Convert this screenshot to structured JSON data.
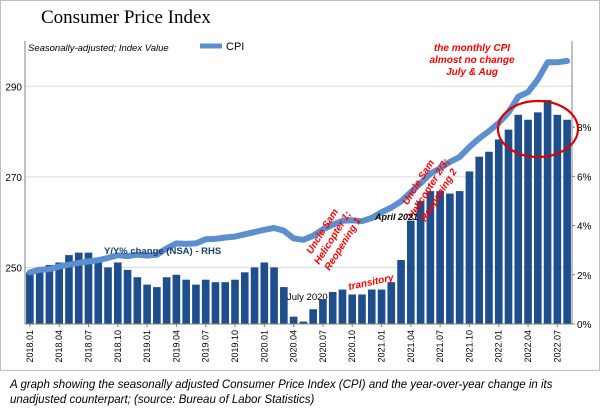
{
  "caption": "A graph showing the seasonally adjusted Consumer Price Index (CPI) and the year-over-year change in its unadjusted counterpart; (source: Bureau of Labor Statistics)",
  "chart_data": {
    "type": "bar+line",
    "title": "Consumer Price Index",
    "subtitle": "Seasonally-adjusted; Index Value",
    "legend": [
      {
        "name": "CPI",
        "color": "#5b8fd0"
      }
    ],
    "legend_position": "top",
    "bar_label": "Y/Y% change (NSA) - RHS",
    "x_tick_labels": [
      "2018.01",
      "2018.04",
      "2018.07",
      "2018.10",
      "2019.01",
      "2019.04",
      "2019.07",
      "2019.10",
      "2020.01",
      "2020.04",
      "2020.07",
      "2020.10",
      "2021.01",
      "2021.04",
      "2021.07",
      "2021.10",
      "2022.01",
      "2022.04",
      "2022.07"
    ],
    "x_tick_every": 3,
    "y_left": {
      "ticks": [
        250,
        270,
        290
      ],
      "range": [
        237.5,
        300
      ],
      "grid": true
    },
    "y_right": {
      "ticks": [
        "0%",
        "2%",
        "4%",
        "6%",
        "8%"
      ],
      "values": [
        0,
        2,
        4,
        6,
        8
      ],
      "range": [
        0,
        11.5
      ]
    },
    "series": [
      {
        "name": "CPI",
        "axis": "left",
        "kind": "line",
        "color": "#5b8fd0",
        "values": [
          248.9,
          249.5,
          249.6,
          250.2,
          250.6,
          251.0,
          251.3,
          251.6,
          252.1,
          252.7,
          252.5,
          252.8,
          252.6,
          252.8,
          254.2,
          255.3,
          255.2,
          255.3,
          256.2,
          256.3,
          256.6,
          256.8,
          257.3,
          257.8,
          258.3,
          258.7,
          258.1,
          256.4,
          256.1,
          257.0,
          258.4,
          259.4,
          260.3,
          260.4,
          260.2,
          260.9,
          262.2,
          263.2,
          264.6,
          266.6,
          268.6,
          270.7,
          271.9,
          273.3,
          274.4,
          276.6,
          278.5,
          280.1,
          281.9,
          284.2,
          287.7,
          288.7,
          291.5,
          295.3,
          295.3,
          295.6
        ]
      },
      {
        "name": "Y/Y% change (NSA)",
        "axis": "right",
        "kind": "bar",
        "color": "#1f4e8c",
        "values": [
          2.1,
          2.2,
          2.4,
          2.5,
          2.8,
          2.9,
          2.9,
          2.7,
          2.3,
          2.5,
          2.2,
          1.9,
          1.6,
          1.5,
          1.9,
          2.0,
          1.8,
          1.6,
          1.8,
          1.7,
          1.7,
          1.8,
          2.1,
          2.3,
          2.5,
          2.3,
          1.5,
          0.3,
          0.1,
          0.6,
          1.0,
          1.3,
          1.4,
          1.2,
          1.2,
          1.4,
          1.4,
          1.7,
          2.6,
          4.2,
          5.0,
          5.4,
          5.4,
          5.3,
          5.4,
          6.2,
          6.8,
          7.0,
          7.5,
          7.9,
          8.5,
          8.3,
          8.6,
          9.1,
          8.5,
          8.3
        ]
      }
    ],
    "annotations": [
      {
        "text": "the monthly CPI\nalmost no change\nJuly & Aug",
        "color": "#ff0000",
        "italic": true,
        "bold": true
      },
      {
        "text": "Uncle Sam\nHelicopter 1;\nReopening 1",
        "color": "#ff0000",
        "italic": true,
        "bold": true
      },
      {
        "text": "Uncle Sam\nHelicopter 2/3;\nReopening 2",
        "color": "#ff0000",
        "italic": true,
        "bold": true
      },
      {
        "text": "April 2021",
        "color": "#000000",
        "italic": true,
        "bold": true
      },
      {
        "text": "July 2020",
        "color": "#000000",
        "italic": false,
        "bold": false
      },
      {
        "text": "transitory",
        "color": "#ff0000",
        "italic": true,
        "bold": true
      }
    ],
    "highlight": {
      "shape": "ellipse",
      "color": "#ff0000",
      "around": "2022.04–2022.08 bars"
    }
  }
}
